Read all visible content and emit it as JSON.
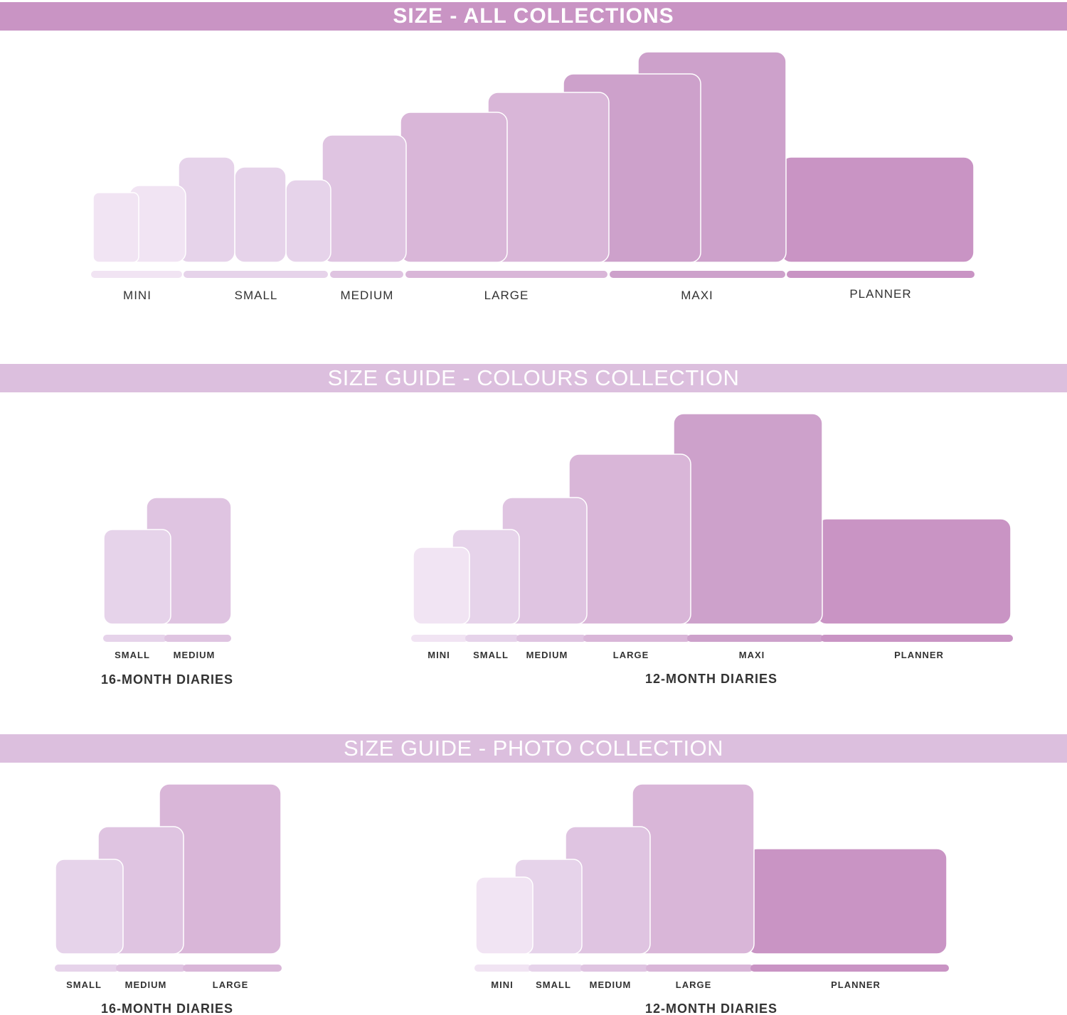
{
  "colors": {
    "mini": "#f1e4f3",
    "small": "#e6d3ea",
    "medium": "#dfc4e1",
    "large": "#d9b6d8",
    "maxi": "#cda1cb",
    "planner": "#c994c4",
    "banner_primary": "#c994c4",
    "banner_secondary": "#dcbfde"
  },
  "sections": {
    "all": {
      "title": "SIZE - ALL COLLECTIONS",
      "labels": {
        "mini": "MINI",
        "small": "SMALL",
        "medium": "MEDIUM",
        "large": "LARGE",
        "maxi": "MAXI",
        "planner": "PLANNER"
      }
    },
    "colours": {
      "title": "SIZE GUIDE - COLOURS COLLECTION",
      "group16": {
        "title": "16-MONTH DIARIES",
        "labels": {
          "small": "SMALL",
          "medium": "MEDIUM"
        }
      },
      "group12": {
        "title": "12-MONTH DIARIES",
        "labels": {
          "mini": "MINI",
          "small": "SMALL",
          "medium": "MEDIUM",
          "large": "LARGE",
          "maxi": "MAXI",
          "planner": "PLANNER"
        }
      }
    },
    "photo": {
      "title": "SIZE GUIDE - PHOTO COLLECTION",
      "group16": {
        "title": "16-MONTH DIARIES",
        "labels": {
          "small": "SMALL",
          "medium": "MEDIUM",
          "large": "LARGE"
        }
      },
      "group12": {
        "title": "12-MONTH DIARIES",
        "labels": {
          "mini": "MINI",
          "small": "SMALL",
          "medium": "MEDIUM",
          "large": "LARGE",
          "planner": "PLANNER"
        }
      }
    }
  }
}
